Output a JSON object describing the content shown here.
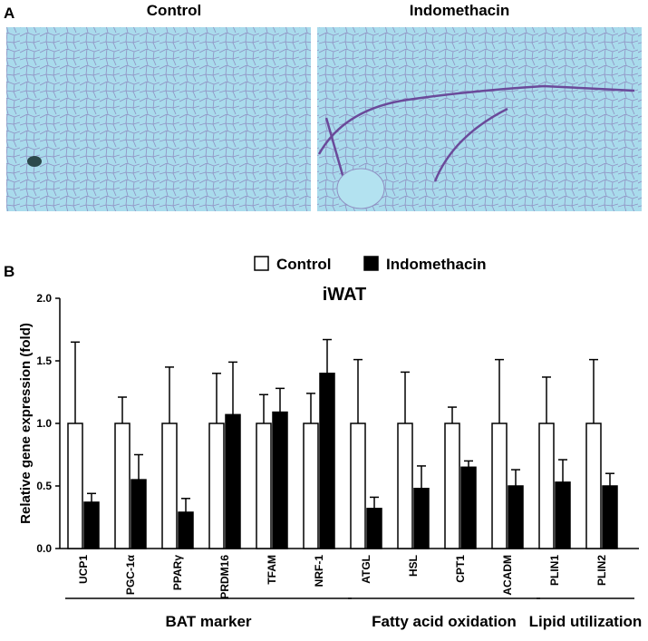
{
  "panels": {
    "a": {
      "label": "A",
      "images": [
        {
          "title": "Control"
        },
        {
          "title": "Indomethacin"
        }
      ]
    },
    "b": {
      "label": "B"
    }
  },
  "chart_data": {
    "type": "bar",
    "title": "iWAT",
    "y_label": "Relative gene expression (fold)",
    "categories": [
      "UCP1",
      "PGC-1α",
      "PPARγ",
      "PRDM16",
      "TFAM",
      "NRF-1",
      "ATGL",
      "HSL",
      "CPT1",
      "ACADM",
      "PLIN1",
      "PLIN2"
    ],
    "series": [
      {
        "name": "Control",
        "color": "#ffffff",
        "values": [
          1,
          1,
          1,
          1,
          1,
          1,
          1,
          1,
          1,
          1,
          1,
          1
        ],
        "errors": [
          0.65,
          0.21,
          0.45,
          0.4,
          0.23,
          0.24,
          0.51,
          0.41,
          0.13,
          0.51,
          0.37,
          0.51
        ]
      },
      {
        "name": "Indomethacin",
        "color": "#000000",
        "values": [
          0.37,
          0.55,
          0.29,
          1.07,
          1.09,
          1.4,
          0.32,
          0.48,
          0.65,
          0.5,
          0.53,
          0.5
        ],
        "errors": [
          0.07,
          0.2,
          0.11,
          0.42,
          0.19,
          0.27,
          0.09,
          0.18,
          0.05,
          0.13,
          0.18,
          0.1
        ]
      }
    ],
    "groups": [
      {
        "label": "BAT marker",
        "count": 6
      },
      {
        "label": "Fatty acid oxidation",
        "count": 4
      },
      {
        "label": "Lipid utilization",
        "count": 2
      }
    ],
    "ylim": [
      0,
      2
    ],
    "yticks": [
      {
        "value": 0,
        "label": "0.0"
      },
      0.5,
      {
        "value": 1,
        "label": "1.0"
      },
      1.5,
      {
        "value": 2,
        "label": "2.0"
      }
    ],
    "grid": false
  }
}
